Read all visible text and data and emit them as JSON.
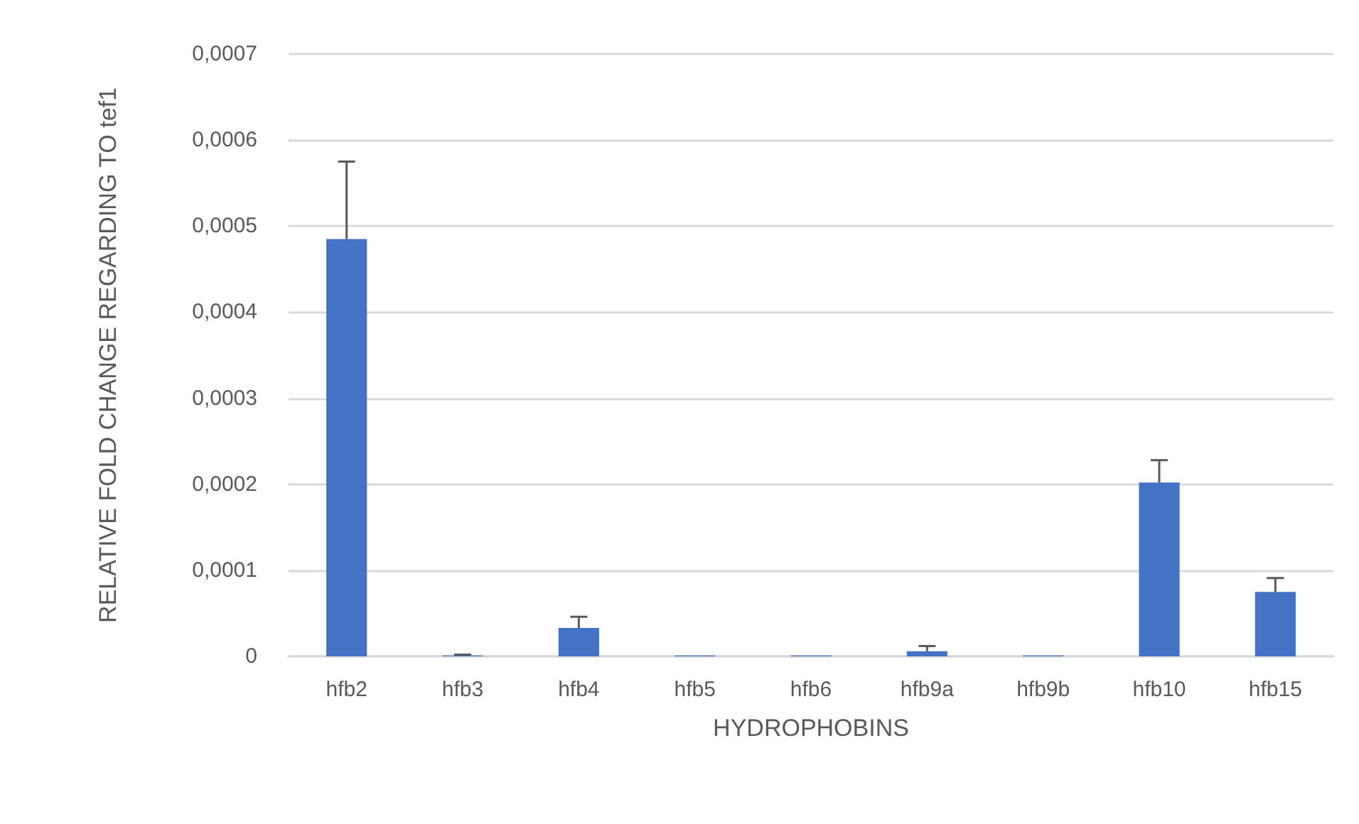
{
  "chart_data": {
    "type": "bar",
    "xlabel": "HYDROPHOBINS",
    "ylabel": "RELATIVE FOLD CHANGE REGARDING TO tef1",
    "categories": [
      "hfb2",
      "hfb3",
      "hfb4",
      "hfb5",
      "hfb6",
      "hfb9a",
      "hfb9b",
      "hfb10",
      "hfb15"
    ],
    "values": [
      0.000485,
      1e-06,
      3.3e-05,
      1e-06,
      1e-06,
      6e-06,
      1e-06,
      0.000202,
      7.5e-05
    ],
    "errors": [
      9e-05,
      1e-06,
      1.3e-05,
      null,
      null,
      6e-06,
      null,
      2.6e-05,
      1.6e-05
    ],
    "color": "#4472c4",
    "ylim": [
      0,
      0.0007
    ],
    "yticks": [
      {
        "value": 0,
        "label": "0"
      },
      {
        "value": 0.0001,
        "label": "0,0001"
      },
      {
        "value": 0.0002,
        "label": "0,0002"
      },
      {
        "value": 0.0003,
        "label": "0,0003"
      },
      {
        "value": 0.0004,
        "label": "0,0004"
      },
      {
        "value": 0.0005,
        "label": "0,0005"
      },
      {
        "value": 0.0006,
        "label": "0,0006"
      },
      {
        "value": 0.0007,
        "label": "0,0007"
      }
    ],
    "grid": "y"
  }
}
